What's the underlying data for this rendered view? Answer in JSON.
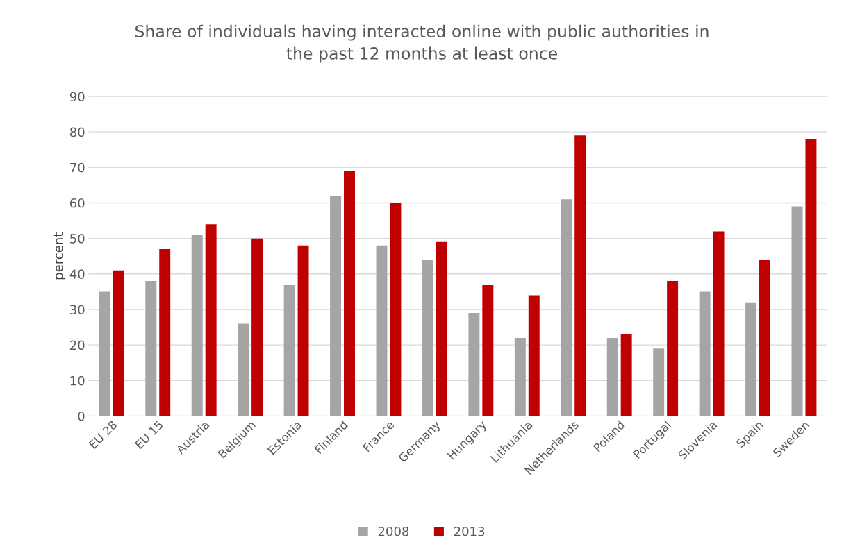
{
  "chart_data": {
    "type": "bar",
    "title": "Share of individuals having interacted online with public authorities in\nthe past 12 months at least once",
    "ylabel": "percent",
    "categories": [
      "EU 28",
      "EU 15",
      "Austria",
      "Belgium",
      "Estonia",
      "Finland",
      "France",
      "Germany",
      "Hungary",
      "Lithuania",
      "Netherlands",
      "Poland",
      "Portugal",
      "Slovenia",
      "Spain",
      "Sweden"
    ],
    "series": [
      {
        "name": "2008",
        "color": "#a5a5a5",
        "values": [
          35,
          38,
          51,
          26,
          37,
          62,
          48,
          44,
          29,
          22,
          61,
          22,
          19,
          35,
          32,
          59
        ]
      },
      {
        "name": "2013",
        "color": "#c00000",
        "values": [
          41,
          47,
          54,
          50,
          48,
          69,
          60,
          49,
          37,
          34,
          79,
          23,
          38,
          52,
          44,
          78
        ]
      }
    ],
    "ylim": [
      0,
      90
    ],
    "yticks": [
      0,
      10,
      20,
      30,
      40,
      50,
      60,
      70,
      80,
      90
    ],
    "grid": "y",
    "legend": "bottom"
  }
}
